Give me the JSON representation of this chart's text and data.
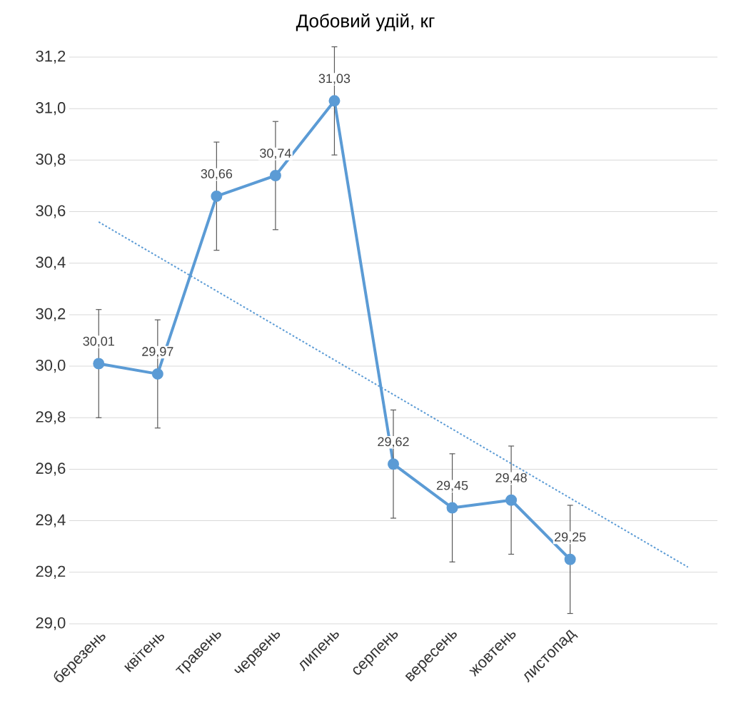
{
  "chart_data": {
    "type": "line",
    "title": "Добовий удій, кг",
    "categories": [
      "березень",
      "квітень",
      "травень",
      "червень",
      "липень",
      "серпень",
      "вересень",
      "жовтень",
      "листопад",
      null,
      null
    ],
    "series": [
      {
        "color": "#5b9bd5",
        "values": [
          30.01,
          29.97,
          30.66,
          30.74,
          31.03,
          29.62,
          29.45,
          29.48,
          29.25,
          null,
          null
        ],
        "errors": [
          0.21,
          0.21,
          0.21,
          0.21,
          0.21,
          0.21,
          0.21,
          0.21,
          0.21,
          null,
          null
        ],
        "value_labels": [
          "30,01",
          "29,97",
          "30,66",
          "30,74",
          "31,03",
          "29,62",
          "29,45",
          "29,48",
          "29,25",
          null,
          null
        ]
      },
      {
        "type": "line",
        "color": "#5b9bd5",
        "values": [
          30.56,
          null,
          null,
          null,
          null,
          null,
          null,
          null,
          null,
          null,
          29.22
        ],
        "line_style": "dotted",
        "marker": "none"
      }
    ],
    "ylim": [
      29.0,
      31.2
    ],
    "yticks": [
      {
        "value": 29.0,
        "label": "29,0"
      },
      {
        "value": 29.2,
        "label": "29,2"
      },
      {
        "value": 29.4,
        "label": "29,4"
      },
      {
        "value": 29.6,
        "label": "29,6"
      },
      {
        "value": 29.8,
        "label": "29,8"
      },
      {
        "value": 30.0,
        "label": "30,0"
      },
      {
        "value": 30.2,
        "label": "30,2"
      },
      {
        "value": 30.4,
        "label": "30,4"
      },
      {
        "value": 30.6,
        "label": "30,6"
      },
      {
        "value": 30.8,
        "label": "30,8"
      },
      {
        "value": 31.0,
        "label": "31,0"
      },
      {
        "value": 31.2,
        "label": "31,2"
      }
    ],
    "grid": "y",
    "marker": "circle",
    "line_style": "solid"
  }
}
